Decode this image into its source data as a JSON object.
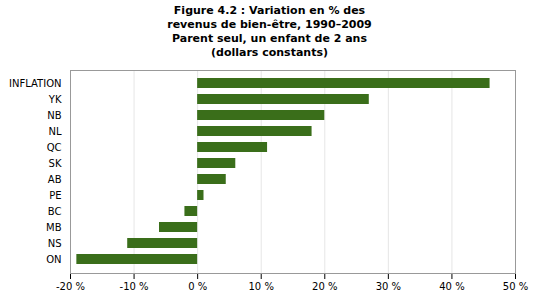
{
  "chart_data": {
    "type": "bar",
    "orientation": "horizontal",
    "title": "Figure 4.2 : Variation en % des\nrevenus de bien-être, 1990–2009\nParent seul, un enfant de 2 ans\n(dollars constants)",
    "categories": [
      "INFLATION",
      "YK",
      "NB",
      "NL",
      "QC",
      "SK",
      "AB",
      "PE",
      "BC",
      "MB",
      "NS",
      "ON"
    ],
    "values": [
      46,
      27,
      20,
      18,
      11,
      6,
      4.5,
      1,
      -2,
      -6,
      -11,
      -19
    ],
    "color": "#3a6e1a",
    "xlim": [
      -20,
      50
    ],
    "xticks": [
      {
        "value": -20,
        "label": "-20 %"
      },
      {
        "value": -10,
        "label": "-10 %"
      },
      {
        "value": 0,
        "label": "0 %"
      },
      {
        "value": 10,
        "label": "10 %"
      },
      {
        "value": 20,
        "label": "20 %"
      },
      {
        "value": 30,
        "label": "30 %"
      },
      {
        "value": 40,
        "label": "40 %"
      },
      {
        "value": 50,
        "label": "50 %"
      }
    ],
    "grid": true
  }
}
